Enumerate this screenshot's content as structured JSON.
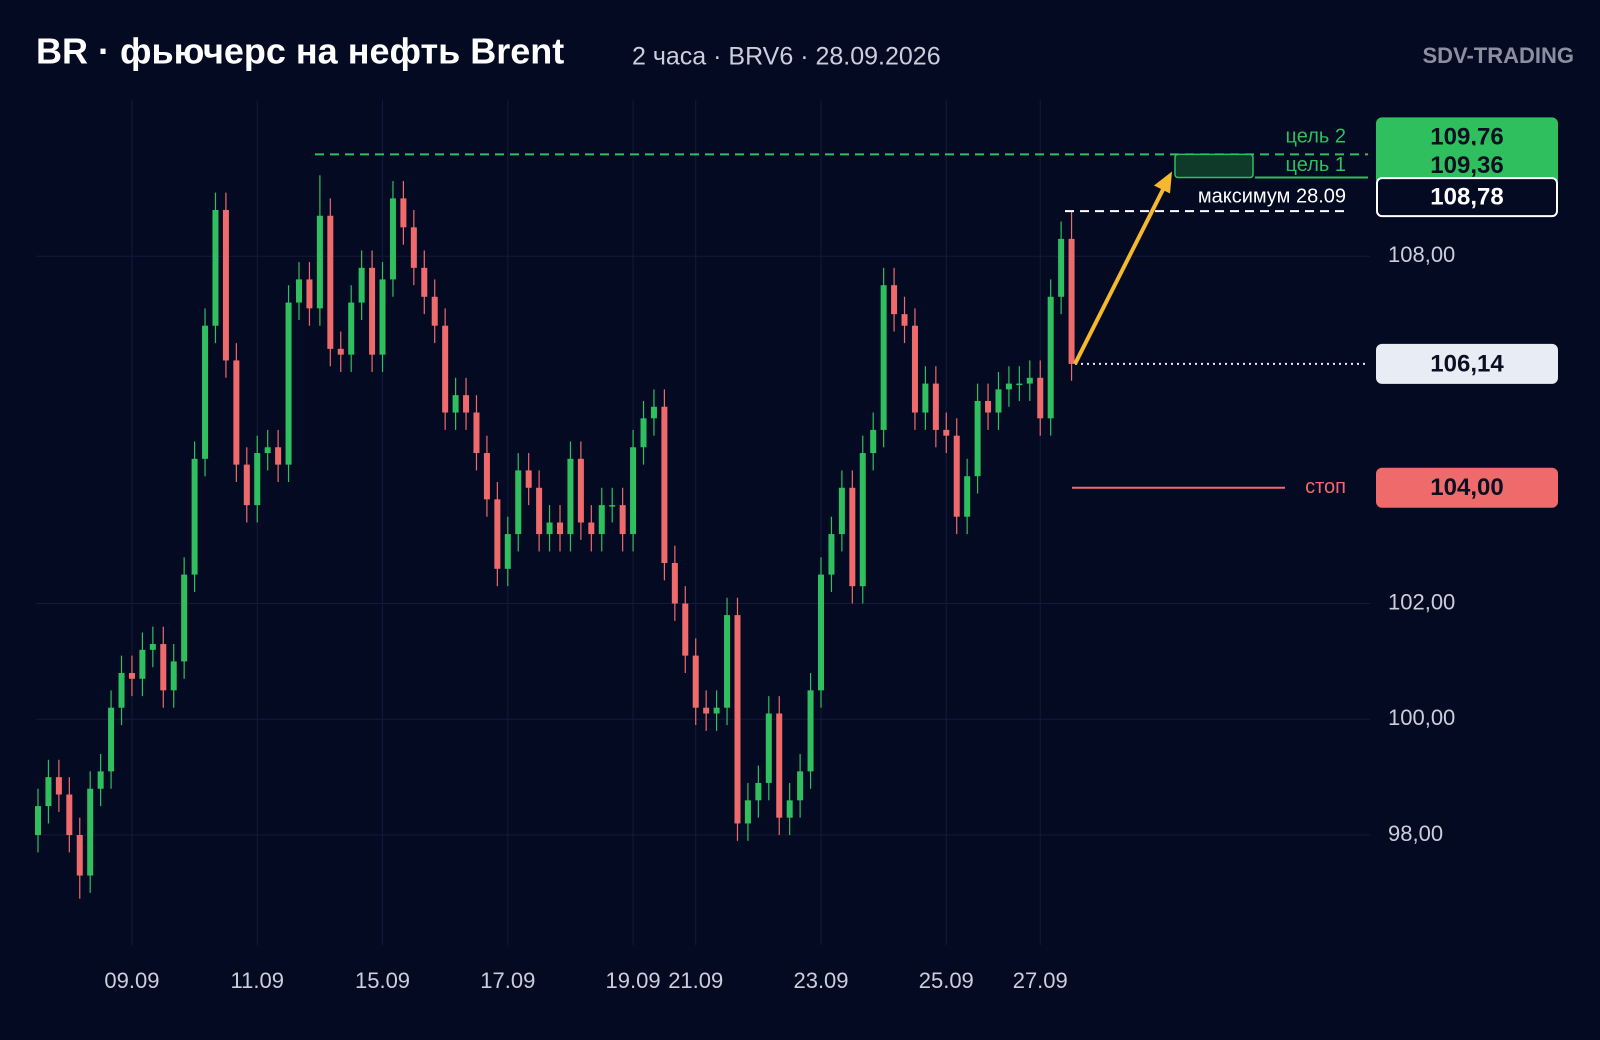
{
  "chart_data": {
    "type": "candlestick",
    "title": "BR · фьючерс на нефть Brent",
    "subtitle": "2 часа · BRV6 · 28.09.2026",
    "brand": "SDV-TRADING",
    "up_color": "#2fbf5f",
    "down_color": "#ef6b6b",
    "grid": true,
    "ylim": [
      96.1,
      110.7
    ],
    "yticks": [
      {
        "value": 98,
        "label": "98,00"
      },
      {
        "value": 100,
        "label": "100,00"
      },
      {
        "value": 102,
        "label": "102,00"
      },
      {
        "value": 108,
        "label": "108,00"
      }
    ],
    "categories": [
      null,
      null,
      null,
      null,
      null,
      null,
      null,
      null,
      null,
      "09.09",
      null,
      null,
      null,
      null,
      null,
      null,
      null,
      null,
      null,
      null,
      null,
      "11.09",
      null,
      null,
      null,
      null,
      null,
      null,
      null,
      null,
      null,
      null,
      null,
      "15.09",
      null,
      null,
      null,
      null,
      null,
      null,
      null,
      null,
      null,
      null,
      null,
      "17.09",
      null,
      null,
      null,
      null,
      null,
      null,
      null,
      null,
      null,
      null,
      null,
      "19.09",
      null,
      null,
      null,
      null,
      null,
      "21.09",
      null,
      null,
      null,
      null,
      null,
      null,
      null,
      null,
      null,
      null,
      null,
      "23.09",
      null,
      null,
      null,
      null,
      null,
      null,
      null,
      null,
      null,
      null,
      null,
      "25.09",
      null,
      null,
      null,
      null,
      null,
      null,
      null,
      null,
      "27.09",
      null,
      null,
      null
    ],
    "open": [
      98.0,
      98.5,
      99.0,
      98.7,
      98.0,
      97.3,
      98.8,
      99.1,
      100.2,
      100.8,
      100.7,
      101.2,
      101.3,
      100.5,
      101.0,
      102.5,
      104.5,
      106.8,
      108.8,
      106.2,
      104.4,
      103.7,
      104.6,
      104.7,
      104.4,
      107.2,
      107.6,
      107.1,
      108.7,
      106.4,
      106.3,
      107.2,
      107.8,
      106.3,
      107.6,
      109.0,
      108.5,
      107.8,
      107.3,
      106.8,
      105.3,
      105.6,
      105.3,
      104.6,
      103.8,
      102.6,
      103.2,
      104.3,
      104.0,
      103.2,
      103.4,
      103.2,
      104.5,
      103.4,
      103.2,
      103.7,
      103.7,
      103.2,
      104.7,
      105.2,
      105.4,
      102.7,
      102.0,
      101.1,
      100.2,
      100.1,
      100.2,
      101.8,
      98.2,
      98.6,
      98.9,
      100.1,
      98.3,
      98.6,
      99.1,
      100.5,
      102.5,
      103.2,
      104.0,
      102.3,
      104.6,
      105.0,
      107.5,
      107.0,
      106.8,
      105.3,
      105.8,
      105.0,
      104.9,
      103.5,
      104.2,
      105.5,
      105.3,
      105.7,
      105.8,
      105.8,
      105.9,
      105.2,
      107.3,
      108.3
    ],
    "high": [
      98.8,
      99.3,
      99.3,
      99.0,
      98.3,
      99.1,
      99.4,
      100.5,
      101.1,
      101.1,
      101.5,
      101.6,
      101.6,
      101.3,
      102.8,
      104.8,
      107.1,
      109.1,
      109.1,
      106.5,
      104.7,
      104.9,
      105.0,
      105.0,
      107.5,
      107.9,
      107.9,
      109.4,
      109.0,
      106.7,
      107.5,
      108.1,
      108.1,
      107.9,
      109.3,
      109.3,
      108.8,
      108.1,
      107.6,
      107.1,
      105.9,
      105.9,
      105.6,
      104.9,
      104.1,
      103.5,
      104.6,
      104.6,
      104.3,
      103.7,
      103.7,
      104.8,
      104.8,
      103.7,
      104.0,
      104.0,
      104.0,
      105.0,
      105.5,
      105.7,
      105.7,
      103.0,
      102.3,
      101.4,
      100.5,
      100.5,
      102.1,
      102.1,
      98.9,
      99.2,
      100.4,
      100.4,
      98.9,
      99.4,
      100.8,
      102.8,
      103.5,
      104.3,
      104.3,
      104.9,
      105.3,
      107.8,
      107.8,
      107.3,
      107.1,
      106.1,
      106.1,
      105.3,
      105.2,
      104.5,
      105.8,
      105.8,
      106.0,
      106.1,
      106.1,
      106.2,
      106.2,
      107.6,
      108.6,
      108.78
    ],
    "low": [
      97.7,
      98.2,
      98.4,
      97.7,
      96.9,
      97.0,
      98.5,
      98.8,
      99.9,
      100.4,
      100.4,
      100.9,
      100.2,
      100.2,
      100.7,
      102.2,
      104.2,
      106.5,
      105.9,
      104.1,
      103.4,
      103.4,
      104.3,
      104.1,
      104.1,
      106.9,
      106.8,
      106.8,
      106.1,
      106.0,
      106.0,
      106.9,
      106.0,
      106.0,
      107.3,
      108.2,
      107.5,
      107.0,
      106.5,
      105.0,
      105.0,
      105.0,
      104.3,
      103.5,
      102.3,
      102.3,
      102.9,
      103.7,
      102.9,
      102.9,
      102.9,
      102.9,
      103.1,
      102.9,
      102.9,
      103.4,
      102.9,
      102.9,
      104.4,
      104.9,
      102.4,
      101.7,
      100.8,
      99.9,
      99.8,
      99.8,
      99.9,
      97.9,
      97.9,
      98.3,
      98.6,
      98.0,
      98.0,
      98.3,
      98.8,
      100.2,
      102.2,
      102.9,
      102.0,
      102.0,
      104.3,
      104.7,
      106.7,
      106.5,
      105.0,
      105.0,
      104.7,
      104.6,
      103.2,
      103.2,
      103.9,
      105.0,
      105.0,
      105.4,
      105.5,
      105.5,
      104.9,
      104.9,
      107.0,
      105.85
    ],
    "close": [
      98.5,
      99.0,
      98.7,
      98.0,
      97.3,
      98.8,
      99.1,
      100.2,
      100.8,
      100.7,
      101.2,
      101.3,
      100.5,
      101.0,
      102.5,
      104.5,
      106.8,
      108.8,
      106.2,
      104.4,
      103.7,
      104.6,
      104.7,
      104.4,
      107.2,
      107.6,
      107.1,
      108.7,
      106.4,
      106.3,
      107.2,
      107.8,
      106.3,
      107.6,
      109.0,
      108.5,
      107.8,
      107.3,
      106.8,
      105.3,
      105.6,
      105.3,
      104.6,
      103.8,
      102.6,
      103.2,
      104.3,
      104.0,
      103.2,
      103.4,
      103.2,
      104.5,
      103.4,
      103.2,
      103.7,
      103.7,
      103.2,
      104.7,
      105.2,
      105.4,
      102.7,
      102.0,
      101.1,
      100.2,
      100.1,
      100.2,
      101.8,
      98.2,
      98.6,
      98.9,
      100.1,
      98.3,
      98.6,
      99.1,
      100.5,
      102.5,
      103.2,
      104.0,
      102.3,
      104.6,
      105.0,
      107.5,
      107.0,
      106.8,
      105.3,
      105.8,
      105.0,
      104.9,
      103.5,
      104.2,
      105.5,
      105.3,
      105.7,
      105.8,
      105.8,
      105.9,
      105.2,
      107.3,
      108.3,
      106.14
    ],
    "levels": [
      {
        "name": "цель 2",
        "value": 109.76,
        "label": "109,76",
        "color": "#2fbf5f",
        "line": "dashed",
        "box": "filled"
      },
      {
        "name": "цель 1",
        "value": 109.36,
        "label": "109,36",
        "color": "#2fbf5f",
        "line": "solid",
        "box": "filled"
      },
      {
        "name": "максимум 28.09",
        "value": 108.78,
        "label": "108,78",
        "color": "#ffffff",
        "line": "dashed",
        "box": "outline"
      },
      {
        "value": 106.14,
        "label": "106,14",
        "color": "#e8edf5",
        "line": "dotted",
        "box": "filled"
      },
      {
        "name": "стоп",
        "value": 104.0,
        "label": "104,00",
        "color": "#ef6b6b",
        "line": "solid",
        "box": "filled"
      }
    ]
  }
}
